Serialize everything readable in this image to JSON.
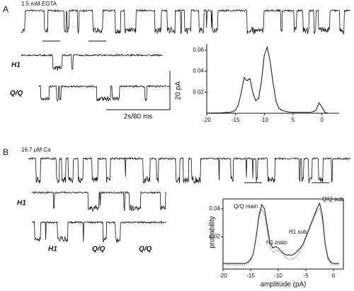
{
  "panels": [
    {
      "label": "A",
      "condition": "1.5 mM EGTA",
      "trace_labels": [
        "H1",
        "Q/Q"
      ],
      "scale_bar": {
        "y": "20 pA",
        "x": "2s/80 ms"
      }
    },
    {
      "label": "B",
      "condition": "16.7 μM Ca",
      "trace_labels": [
        "H1",
        "H1",
        "Q/Q",
        "Q/Q"
      ]
    }
  ],
  "chart_data": [
    {
      "type": "line",
      "x": [
        -20,
        -19.5,
        -19,
        -18.5,
        -18,
        -17.5,
        -17,
        -16.5,
        -16,
        -15.5,
        -15,
        -14.5,
        -14,
        -13.5,
        -13,
        -12.5,
        -12,
        -11.5,
        -11,
        -10.5,
        -10,
        -9.5,
        -9,
        -8.5,
        -8,
        -7.5,
        -7,
        -6.5,
        -6,
        -5.5,
        -5,
        -4.5,
        -4,
        -3.5,
        -3,
        -2.5,
        -2,
        -1.5,
        -1,
        -0.5,
        0,
        0.5,
        1
      ],
      "series": [
        {
          "color": "#222222",
          "style": "solid",
          "values": [
            0.0002,
            0.0002,
            0.0003,
            0.0003,
            0.0004,
            0.0005,
            0.0006,
            0.0008,
            0.001,
            0.0015,
            0.003,
            0.008,
            0.02,
            0.034,
            0.031,
            0.033,
            0.02,
            0.012,
            0.014,
            0.03,
            0.055,
            0.063,
            0.05,
            0.03,
            0.012,
            0.005,
            0.003,
            0.002,
            0.0015,
            0.001,
            0.001,
            0.001,
            0.001,
            0.001,
            0.001,
            0.001,
            0.001,
            0.0015,
            0.003,
            0.01,
            0.006,
            0.001,
            0.0002
          ]
        }
      ],
      "xlim": [
        -20,
        3
      ],
      "ylim": [
        0,
        0.066
      ],
      "xticks": [
        -20,
        -15,
        -10,
        {
          "value": -5,
          "label": "5"
        },
        0
      ],
      "yticks": [
        0.02,
        0.04,
        0.06
      ],
      "frame": "axes"
    },
    {
      "type": "line",
      "xlabel": "amplitude (pA)",
      "ylabel": "probability",
      "annotations": [
        "Q/Q main",
        "H1 main",
        "H1 sub",
        "Q/Q sub"
      ],
      "x": [
        -20,
        -19.5,
        -19,
        -18.5,
        -18,
        -17.5,
        -17,
        -16.5,
        -16,
        -15.5,
        -15,
        -14.5,
        -14,
        -13.5,
        -13,
        -12.5,
        -12,
        -11.5,
        -11,
        -10.5,
        -10,
        -9.5,
        -9,
        -8.5,
        -8,
        -7.5,
        -7,
        -6.5,
        -6,
        -5.5,
        -5,
        -4.5,
        -4,
        -3.5,
        -3,
        -2.5,
        -2,
        -1.5,
        -1,
        -0.5,
        0,
        0.5,
        1
      ],
      "series": [
        {
          "color": "#222222",
          "style": "solid",
          "values": [
            0.001,
            0.001,
            0.001,
            0.001,
            0.001,
            0.001,
            0.001,
            0.001,
            0.001,
            0.002,
            0.004,
            0.008,
            0.02,
            0.035,
            0.043,
            0.04,
            0.028,
            0.016,
            0.012,
            0.013,
            0.012,
            0.01,
            0.008,
            0.007,
            0.007,
            0.007,
            0.008,
            0.01,
            0.012,
            0.015,
            0.02,
            0.025,
            0.03,
            0.035,
            0.04,
            0.044,
            0.035,
            0.015,
            0.005,
            0.002,
            0.001,
            0.001,
            0.001
          ]
        },
        {
          "color": "#555555",
          "style": "dotted",
          "values": [
            0,
            0,
            0,
            0,
            0,
            0,
            0,
            0,
            0,
            0.001,
            0.003,
            0.008,
            0.019,
            0.033,
            0.04,
            0.036,
            0.024,
            0.013,
            0.009,
            0.01,
            0.01,
            0.009,
            0.007,
            0.005,
            0.004,
            0.004,
            0.005,
            0.007,
            0.01,
            0.014,
            0.019,
            0.024,
            0.029,
            0.034,
            0.038,
            0.04,
            0.032,
            0.014,
            0.004,
            0.001,
            0,
            0,
            0
          ]
        }
      ],
      "xlim": [
        -20,
        1.8
      ],
      "ylim": [
        -0.003,
        0.047
      ],
      "xticks": [
        -20,
        -15,
        -10,
        -5,
        0
      ],
      "yticks": [
        0.02,
        0.04
      ],
      "frame": "box"
    }
  ]
}
